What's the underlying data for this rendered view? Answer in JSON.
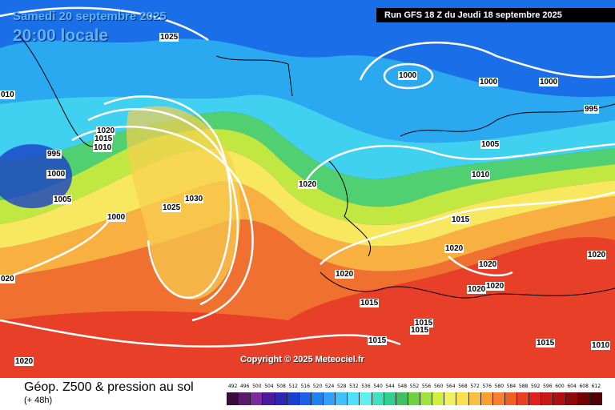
{
  "header": {
    "date_line": "Samedi 20 septembre 2025",
    "time_line": "20:00 locale",
    "run_info": "Run GFS 18 Z du Jeudi 18 septembre 2025",
    "copyright": "Copyright © 2025 Meteociel.fr"
  },
  "footer": {
    "title": "Géop. Z500 & pression au sol",
    "subtitle": "(+ 48h)"
  },
  "isobar_labels": [
    "1025",
    "010",
    "1020",
    "1015",
    "1010",
    "995",
    "1000",
    "1005",
    "1000",
    "1030",
    "1025",
    "1020",
    "1000",
    "1000",
    "1000",
    "995",
    "1005",
    "1010",
    "1015",
    "1020",
    "1020",
    "1020",
    "1020",
    "1020",
    "1015",
    "1015",
    "1015",
    "1015",
    "1015",
    "1020",
    "1010",
    "020",
    "1020"
  ],
  "legend": {
    "levels": [
      "492",
      "496",
      "500",
      "504",
      "508",
      "512",
      "516",
      "520",
      "524",
      "528",
      "532",
      "536",
      "540",
      "544",
      "548",
      "552",
      "556",
      "560",
      "564",
      "568",
      "572",
      "576",
      "580",
      "584",
      "588",
      "592",
      "596",
      "600",
      "604",
      "608",
      "612"
    ],
    "colors": [
      "#3a0a3a",
      "#5a1a6a",
      "#7a2a9a",
      "#4a1a9a",
      "#2a2ab0",
      "#1a40d0",
      "#1a60e8",
      "#2080f0",
      "#30a0f8",
      "#40c0ff",
      "#50e0ff",
      "#60f0f0",
      "#40e0c0",
      "#30d090",
      "#40c060",
      "#70d040",
      "#a0e040",
      "#d0f040",
      "#f0f060",
      "#f8e050",
      "#f8c040",
      "#f8a030",
      "#f88030",
      "#f06020",
      "#e84020",
      "#e02020",
      "#c81818",
      "#b01010",
      "#900808",
      "#700404",
      "#500000"
    ]
  }
}
